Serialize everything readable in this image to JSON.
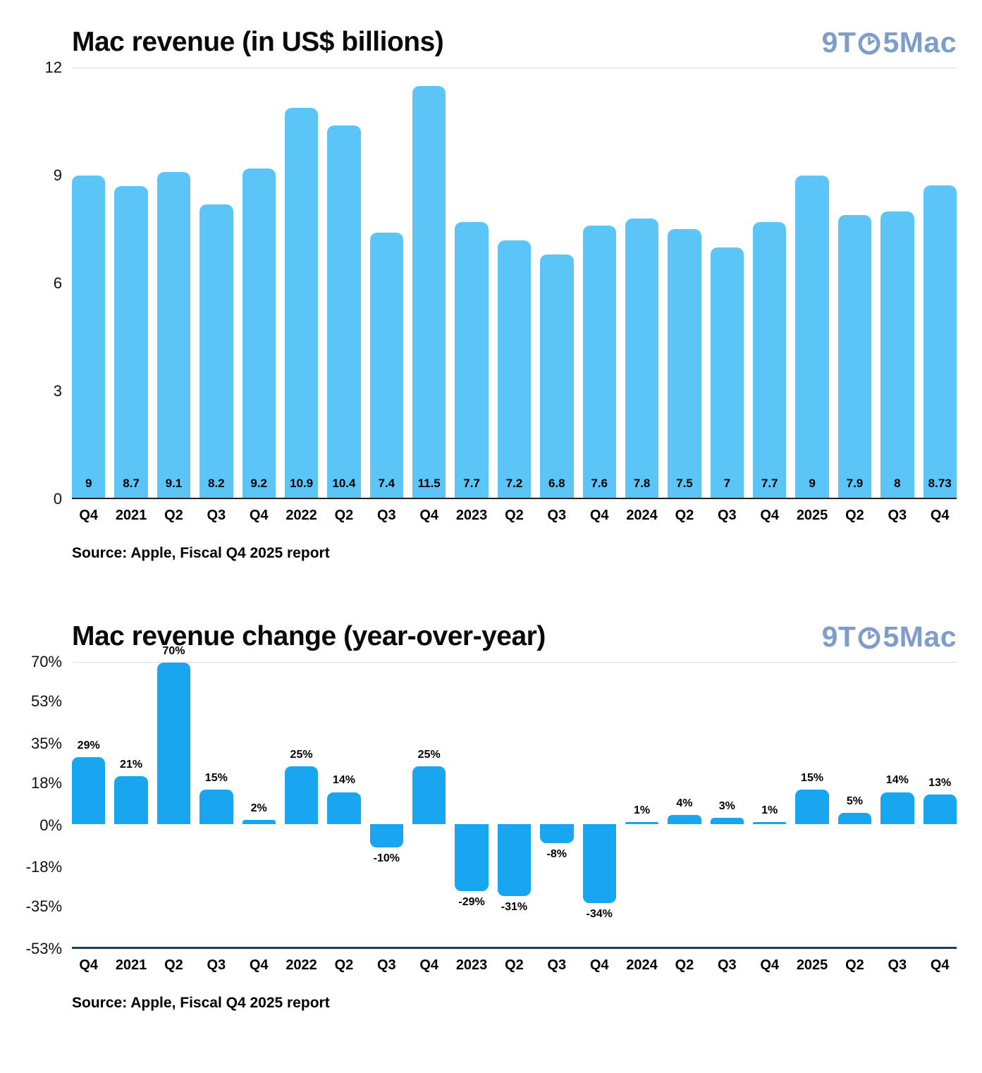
{
  "logo": {
    "part1": "9T",
    "part2": "5Mac"
  },
  "chart_data": [
    {
      "type": "bar",
      "title": "Mac revenue (in US$ billions)",
      "source": "Source: Apple, Fiscal Q4 2025 report",
      "categories": [
        "Q4",
        "2021",
        "Q2",
        "Q3",
        "Q4",
        "2022",
        "Q2",
        "Q3",
        "Q4",
        "2023",
        "Q2",
        "Q3",
        "Q4",
        "2024",
        "Q2",
        "Q3",
        "Q4",
        "2025",
        "Q2",
        "Q3",
        "Q4"
      ],
      "values": [
        9,
        8.7,
        9.1,
        8.2,
        9.2,
        10.9,
        10.4,
        7.4,
        11.5,
        7.7,
        7.2,
        6.8,
        7.6,
        7.8,
        7.5,
        7,
        7.7,
        9,
        7.9,
        8,
        8.73
      ],
      "labels": [
        "9",
        "8.7",
        "9.1",
        "8.2",
        "9.2",
        "10.9",
        "10.4",
        "7.4",
        "11.5",
        "7.7",
        "7.2",
        "6.8",
        "7.6",
        "7.8",
        "7.5",
        "7",
        "7.7",
        "9",
        "7.9",
        "8",
        "8.73"
      ],
      "yticks": [
        12,
        9,
        6,
        3,
        0
      ],
      "ytick_labels": [
        "12",
        "9",
        "6",
        "3",
        "0"
      ],
      "ylim": [
        0,
        12
      ],
      "bar_color": "#5cc5f7",
      "grid": "top-line-and-baseline",
      "legend": "none"
    },
    {
      "type": "bar",
      "title": "Mac revenue change (year-over-year)",
      "source": "Source: Apple, Fiscal Q4 2025 report",
      "categories": [
        "Q4",
        "2021",
        "Q2",
        "Q3",
        "Q4",
        "2022",
        "Q2",
        "Q3",
        "Q4",
        "2023",
        "Q2",
        "Q3",
        "Q4",
        "2024",
        "Q2",
        "Q3",
        "Q4",
        "2025",
        "Q2",
        "Q3",
        "Q4"
      ],
      "values": [
        29,
        21,
        70,
        15,
        2,
        25,
        14,
        -10,
        25,
        -29,
        -31,
        -8,
        -34,
        1,
        4,
        3,
        1,
        15,
        5,
        14,
        13
      ],
      "labels": [
        "29%",
        "21%",
        "70%",
        "15%",
        "2%",
        "25%",
        "14%",
        "-10%",
        "25%",
        "-29%",
        "-31%",
        "-8%",
        "-34%",
        "1%",
        "4%",
        "3%",
        "1%",
        "15%",
        "5%",
        "14%",
        "13%"
      ],
      "yticks": [
        70,
        53,
        35,
        18,
        0,
        -18,
        -35,
        -53
      ],
      "ytick_labels": [
        "70%",
        "53%",
        "35%",
        "18%",
        "0%",
        "-18%",
        "-35%",
        "-53%"
      ],
      "ylim": [
        -53,
        70
      ],
      "bar_color": "#18a6f0",
      "grid": "top-line-and-baseline",
      "legend": "none"
    }
  ]
}
